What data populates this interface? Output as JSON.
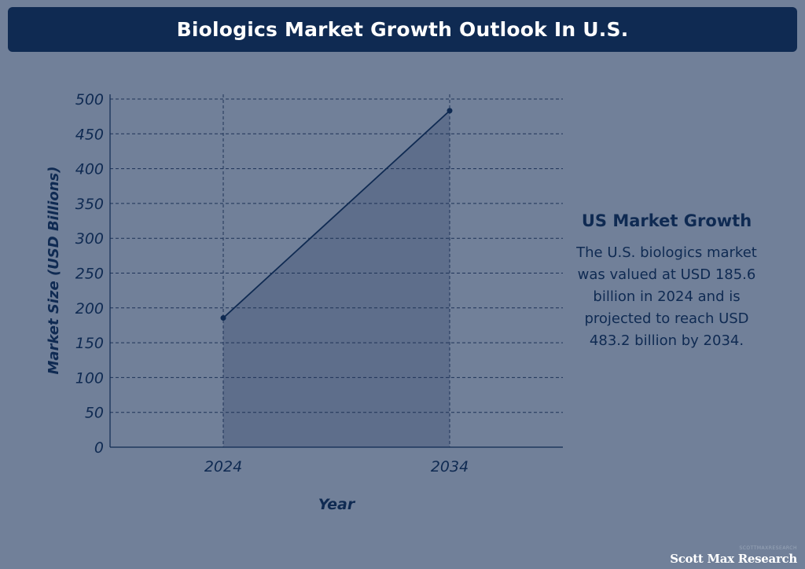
{
  "header": {
    "title": "Biologics Market Growth Outlook In U.S."
  },
  "chart_data": {
    "type": "area",
    "title": "Biologics Market Growth Outlook In U.S.",
    "xlabel": "Year",
    "ylabel": "Market Size (USD Billions)",
    "categories": [
      "2024",
      "2034"
    ],
    "values": [
      185.6,
      483.2
    ],
    "ylim": [
      0,
      500
    ],
    "yticks": [
      0,
      50,
      100,
      150,
      200,
      250,
      300,
      350,
      400,
      450,
      500
    ],
    "grid": true,
    "colors": {
      "line": "#0f2a52",
      "fill": "#5a6b88",
      "grid": "#1e3358"
    }
  },
  "side_panel": {
    "title": "US Market Growth",
    "text": "The U.S. biologics market was valued at USD 185.6 billion in 2024 and is projected to reach USD 483.2 billion by 2034."
  },
  "brand": {
    "small": "SCOTTMAXRESEARCH",
    "name": "Scott Max Research"
  }
}
